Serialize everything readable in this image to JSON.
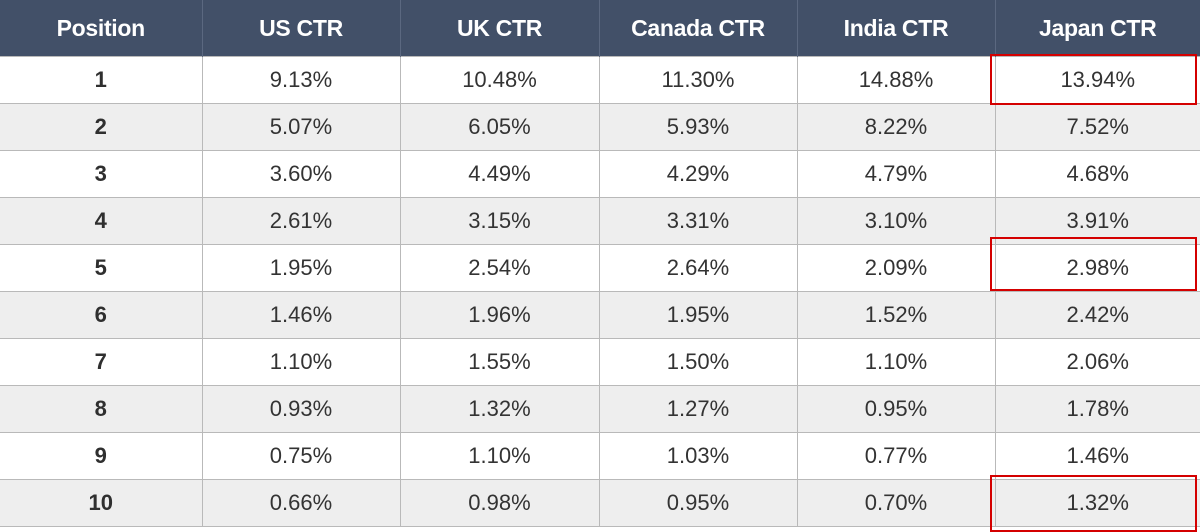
{
  "chart_data": {
    "type": "table",
    "columns": [
      "Position",
      "US CTR",
      "UK CTR",
      "Canada CTR",
      "India CTR",
      "Japan CTR"
    ],
    "rows": [
      [
        "1",
        "9.13%",
        "10.48%",
        "11.30%",
        "14.88%",
        "13.94%"
      ],
      [
        "2",
        "5.07%",
        "6.05%",
        "5.93%",
        "8.22%",
        "7.52%"
      ],
      [
        "3",
        "3.60%",
        "4.49%",
        "4.29%",
        "4.79%",
        "4.68%"
      ],
      [
        "4",
        "2.61%",
        "3.15%",
        "3.31%",
        "3.10%",
        "3.91%"
      ],
      [
        "5",
        "1.95%",
        "2.54%",
        "2.64%",
        "2.09%",
        "2.98%"
      ],
      [
        "6",
        "1.46%",
        "1.96%",
        "1.95%",
        "1.52%",
        "2.42%"
      ],
      [
        "7",
        "1.10%",
        "1.55%",
        "1.50%",
        "1.10%",
        "2.06%"
      ],
      [
        "8",
        "0.93%",
        "1.32%",
        "1.27%",
        "0.95%",
        "1.78%"
      ],
      [
        "9",
        "0.75%",
        "1.10%",
        "1.03%",
        "0.77%",
        "1.46%"
      ],
      [
        "10",
        "0.66%",
        "0.98%",
        "0.95%",
        "0.70%",
        "1.32%"
      ]
    ],
    "highlighted_cells": [
      {
        "row": 0,
        "column": 5
      },
      {
        "row": 4,
        "column": 5
      },
      {
        "row": 9,
        "column": 5
      }
    ],
    "colors": {
      "header_background": "#425068",
      "header_text": "#ffffff",
      "stripe_row": "#eeeeee",
      "highlight_border": "#d40000"
    }
  }
}
